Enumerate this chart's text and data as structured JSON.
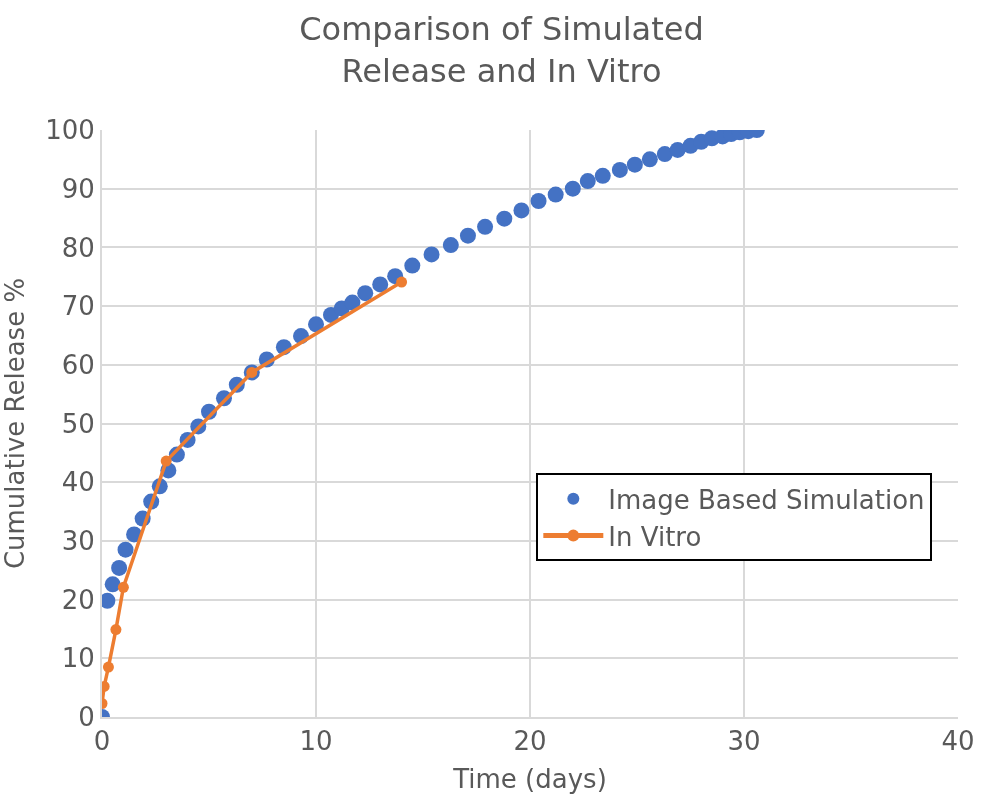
{
  "chart_data": {
    "type": "scatter",
    "title": "Comparison of Simulated\nRelease and In Vitro",
    "xlabel": "Time (days)",
    "ylabel": "Cumulative Release %",
    "xlim": [
      0,
      40
    ],
    "xticks": [
      0,
      10,
      20,
      30,
      40
    ],
    "ylim": [
      0,
      100
    ],
    "yticks": [
      0,
      10,
      20,
      30,
      40,
      50,
      60,
      70,
      80,
      90,
      100
    ],
    "grid": true,
    "legend": "right",
    "series": [
      {
        "name": "Image Based Simulation",
        "color": "#4472c4",
        "marker": "circle",
        "x": [
          0,
          0.25,
          0.5,
          0.8,
          1.1,
          1.5,
          1.9,
          2.3,
          2.7,
          3.1,
          3.5,
          4.0,
          4.5,
          5.0,
          5.7,
          6.3,
          7.0,
          7.7,
          8.5,
          9.3,
          10.0,
          10.7,
          11.2,
          11.7,
          12.3,
          13.0,
          13.7,
          14.5,
          15.4,
          16.3,
          17.1,
          17.9,
          18.8,
          19.6,
          20.4,
          21.2,
          22.0,
          22.7,
          23.4,
          24.2,
          24.9,
          25.6,
          26.3,
          26.9,
          27.5,
          28.0,
          28.5,
          29.0,
          29.4,
          29.8,
          30.2,
          30.6
        ],
        "values": [
          0,
          19.8,
          22.6,
          25.4,
          28.5,
          31.1,
          33.8,
          36.7,
          39.3,
          42.0,
          44.7,
          47.2,
          49.5,
          52.0,
          54.3,
          56.6,
          58.7,
          60.9,
          63.0,
          64.9,
          66.9,
          68.5,
          69.6,
          70.6,
          72.2,
          73.7,
          75.1,
          76.9,
          78.8,
          80.4,
          82.0,
          83.5,
          84.9,
          86.3,
          87.9,
          89.0,
          90.0,
          91.3,
          92.2,
          93.2,
          94.1,
          95.0,
          95.9,
          96.6,
          97.3,
          98.0,
          98.6,
          98.9,
          99.3,
          99.6,
          99.8,
          100
        ]
      },
      {
        "name": "In Vitro",
        "color": "#ed7d31",
        "type": "line",
        "marker": "circle",
        "line_style": "solid",
        "x": [
          0,
          0.1,
          0.3,
          0.65,
          1.0,
          3.0,
          7.0,
          14.0
        ],
        "values": [
          2.3,
          5.2,
          8.5,
          14.9,
          22.1,
          43.6,
          58.7,
          74.1
        ]
      }
    ]
  }
}
